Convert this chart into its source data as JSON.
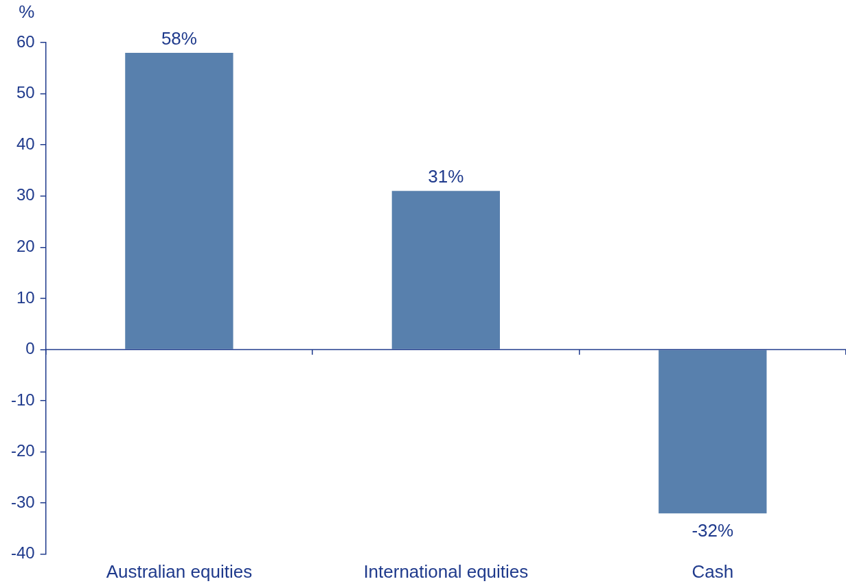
{
  "chart_data": {
    "type": "bar",
    "ylabel": "%",
    "categories": [
      "Australian equities",
      "International equities",
      "Cash"
    ],
    "values": [
      58,
      31,
      -32
    ],
    "value_labels": [
      "58%",
      "31%",
      "-32%"
    ],
    "color": "#5880ad",
    "ref_lines": [
      {
        "axis": "y",
        "value": 0,
        "color": "#1f3a8c"
      }
    ],
    "ylim": [
      -40,
      60
    ],
    "yticks": [
      -40,
      -30,
      -20,
      -10,
      0,
      10,
      20,
      30,
      40,
      50,
      60
    ]
  }
}
